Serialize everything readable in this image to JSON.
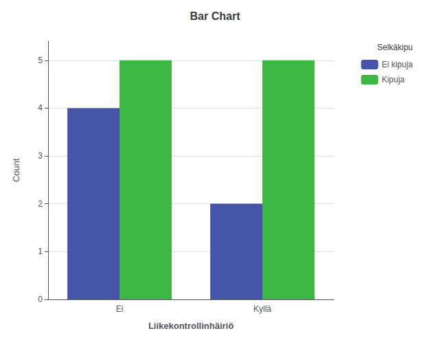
{
  "chart_data": {
    "type": "bar",
    "title": "Bar Chart",
    "xlabel": "Liikekontrollinhäiriö",
    "ylabel": "Count",
    "legend_title": "Selkäkipu",
    "categories": [
      "Ei",
      "Kyllä"
    ],
    "series": [
      {
        "name": "Ei kipuja",
        "color": "#4555a8",
        "values": [
          4,
          2
        ]
      },
      {
        "name": "Kipuja",
        "color": "#3cb743",
        "values": [
          5,
          5
        ]
      }
    ],
    "ylim": [
      0,
      5.4
    ],
    "yticks": [
      0,
      1,
      2,
      3,
      4,
      5
    ],
    "grid": true,
    "legend": "right"
  }
}
